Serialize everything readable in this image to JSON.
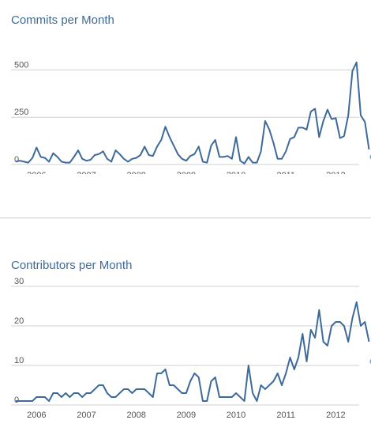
{
  "chart_data": [
    {
      "type": "line",
      "title": "Commits per Month",
      "x_start": "2005-08",
      "x_ticks": [
        "2006",
        "2007",
        "2008",
        "2009",
        "2010",
        "2011",
        "2012"
      ],
      "yticks": [
        0,
        250,
        500
      ],
      "ylim": [
        0,
        600
      ],
      "grid": true,
      "line_color": "#3e6a9a",
      "marker_color": "#7fa3cc",
      "values": [
        15,
        20,
        15,
        10,
        35,
        90,
        40,
        35,
        15,
        60,
        40,
        15,
        10,
        10,
        40,
        75,
        30,
        20,
        25,
        50,
        55,
        70,
        30,
        15,
        75,
        55,
        30,
        15,
        30,
        35,
        50,
        95,
        50,
        45,
        95,
        130,
        200,
        145,
        100,
        55,
        30,
        20,
        45,
        55,
        95,
        15,
        10,
        100,
        130,
        40,
        40,
        45,
        30,
        145,
        20,
        5,
        40,
        10,
        10,
        70,
        230,
        185,
        115,
        30,
        30,
        70,
        135,
        145,
        195,
        195,
        185,
        280,
        295,
        145,
        230,
        290,
        240,
        245,
        140,
        150,
        260,
        495,
        540,
        260,
        225,
        80
      ],
      "partial_last": 40
    },
    {
      "type": "line",
      "title": "Contributors per Month",
      "x_start": "2005-08",
      "x_ticks": [
        "2006",
        "2007",
        "2008",
        "2009",
        "2010",
        "2011",
        "2012"
      ],
      "yticks": [
        0,
        10,
        20,
        30
      ],
      "ylim": [
        0,
        32
      ],
      "grid": true,
      "line_color": "#3e6a9a",
      "marker_color": "#7fa3cc",
      "values": [
        1,
        1,
        1,
        1,
        1,
        2,
        2,
        2,
        1,
        3,
        3,
        2,
        3,
        2,
        3,
        3,
        2,
        3,
        3,
        4,
        5,
        5,
        3,
        2,
        2,
        3,
        4,
        4,
        3,
        4,
        4,
        4,
        3,
        2,
        8,
        8,
        9,
        5,
        5,
        4,
        3,
        3,
        6,
        8,
        7,
        1,
        1,
        6,
        7,
        2,
        2,
        2,
        2,
        3,
        2,
        1,
        10,
        3,
        1,
        5,
        4,
        5,
        6,
        8,
        5,
        8,
        12,
        9,
        12,
        18,
        11,
        19,
        17,
        24,
        16,
        15,
        20,
        21,
        21,
        20,
        16,
        22,
        26,
        20,
        21,
        16
      ],
      "partial_last": 11
    }
  ]
}
